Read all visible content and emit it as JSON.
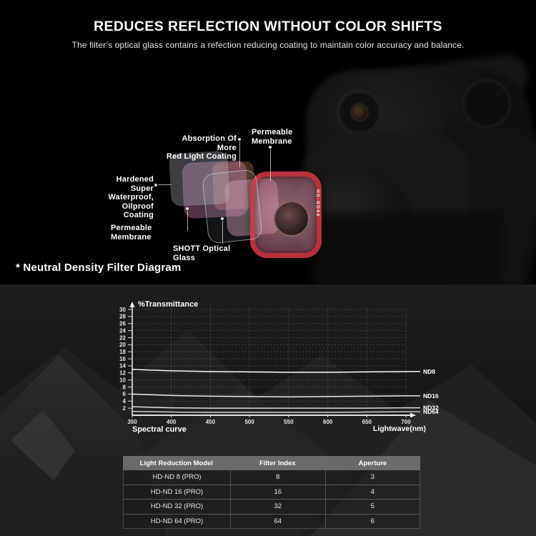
{
  "header": {
    "title": "REDUCES REFLECTION WITHOUT COLOR SHIFTS",
    "subtitle": "The filter’s optical glass contains a refection reducing coating to maintain color accuracy and balance."
  },
  "diagram": {
    "caption": "* Neutral Density Filter Diagram",
    "filter_model_label": "HD-ND64",
    "labels": {
      "absorption": "Absorption Of More\nRed Light Coating",
      "permeable_top": "Permeable\nMembrane",
      "hardened": "Hardened Super\nWaterproof,\nOilproof Coating",
      "permeable_bottom": "Permeable Membrane",
      "shott": "SHOTT Optical Glass"
    }
  },
  "chart_data": {
    "type": "line",
    "title": "Spectral curve",
    "ylabel": "%Transmittance",
    "xlabel": "Lightwave(nm)",
    "x": [
      350,
      400,
      450,
      500,
      550,
      600,
      650,
      700
    ],
    "series": [
      {
        "name": "ND8",
        "values": [
          13.0,
          12.6,
          12.4,
          12.3,
          12.2,
          12.2,
          12.3,
          12.4
        ]
      },
      {
        "name": "ND16",
        "values": [
          6.0,
          5.6,
          5.4,
          5.3,
          5.2,
          5.3,
          5.4,
          5.5
        ]
      },
      {
        "name": "ND32",
        "values": [
          2.4,
          2.1,
          2.0,
          2.0,
          2.0,
          2.0,
          2.0,
          2.1
        ]
      },
      {
        "name": "ND64",
        "values": [
          1.1,
          0.9,
          0.8,
          0.8,
          0.8,
          0.8,
          0.9,
          1.0
        ]
      }
    ],
    "ylim": [
      0,
      30
    ],
    "ytick_step": 2,
    "xlim": [
      350,
      700
    ],
    "grid": true,
    "legend_position": "right of line ends"
  },
  "table": {
    "headers": [
      "Light Reduction Model",
      "Filter Index",
      "Aperture"
    ],
    "rows": [
      [
        "HD-ND 8 (PRO)",
        "8",
        "3"
      ],
      [
        "HD-ND 16 (PRO)",
        "16",
        "4"
      ],
      [
        "HD-ND 32 (PRO)",
        "32",
        "5"
      ],
      [
        "HD-ND 64 (PRO)",
        "64",
        "6"
      ]
    ]
  },
  "colors": {
    "accent_red": "#b8323e",
    "chart_line": "#f2f2f2",
    "text": "#ffffff",
    "table_header_bg": "#5c5c5c"
  }
}
